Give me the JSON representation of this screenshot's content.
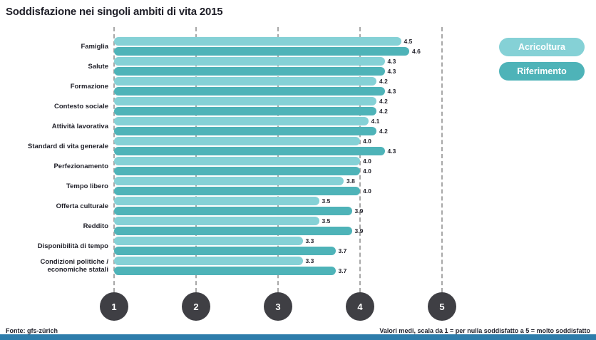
{
  "title": "Soddisfazione nei singoli ambiti di vita 2015",
  "footer": {
    "source": "Fonte: gfs-zürich",
    "note": "Valori medi, scala da 1 = per nulla soddisfatto a 5 = molto soddisfatto"
  },
  "legend": {
    "items": [
      {
        "label": "Acricoltura",
        "color": "#85d1d6"
      },
      {
        "label": "Riferimento",
        "color": "#4eb3b8"
      }
    ]
  },
  "colors": {
    "bar_light": "#85d1d6",
    "bar_dark": "#4eb3b8",
    "text": "#1f1f28",
    "axis_circle": "#3f3f44",
    "gridline": "#a8a8a8",
    "bottom_strip": "#2e7dab"
  },
  "chart_data": {
    "type": "bar",
    "orientation": "horizontal",
    "title": "Soddisfazione nei singoli ambiti di vita 2015",
    "xlabel": "",
    "ylabel": "",
    "xlim": [
      1,
      5
    ],
    "x_ticks": [
      "1",
      "2",
      "3",
      "4",
      "5"
    ],
    "grid": "vertical-dashed",
    "legend_position": "top-right",
    "categories": [
      "Famiglia",
      "Salute",
      "Formazione",
      "Contesto sociale",
      "Attività lavorativa",
      "Standard di vita generale",
      "Perfezionamento",
      "Tempo libero",
      "Offerta culturale",
      "Reddito",
      "Disponibilità di tempo",
      "Condizioni politiche /\neconomiche statali"
    ],
    "series": [
      {
        "name": "Acricoltura",
        "values": [
          4.5,
          4.3,
          4.2,
          4.2,
          4.1,
          4.0,
          4.0,
          3.8,
          3.5,
          3.5,
          3.3,
          3.3
        ]
      },
      {
        "name": "Riferimento",
        "values": [
          4.6,
          4.3,
          4.3,
          4.2,
          4.2,
          4.3,
          4.0,
          4.0,
          3.9,
          3.9,
          3.7,
          3.7
        ]
      }
    ]
  }
}
